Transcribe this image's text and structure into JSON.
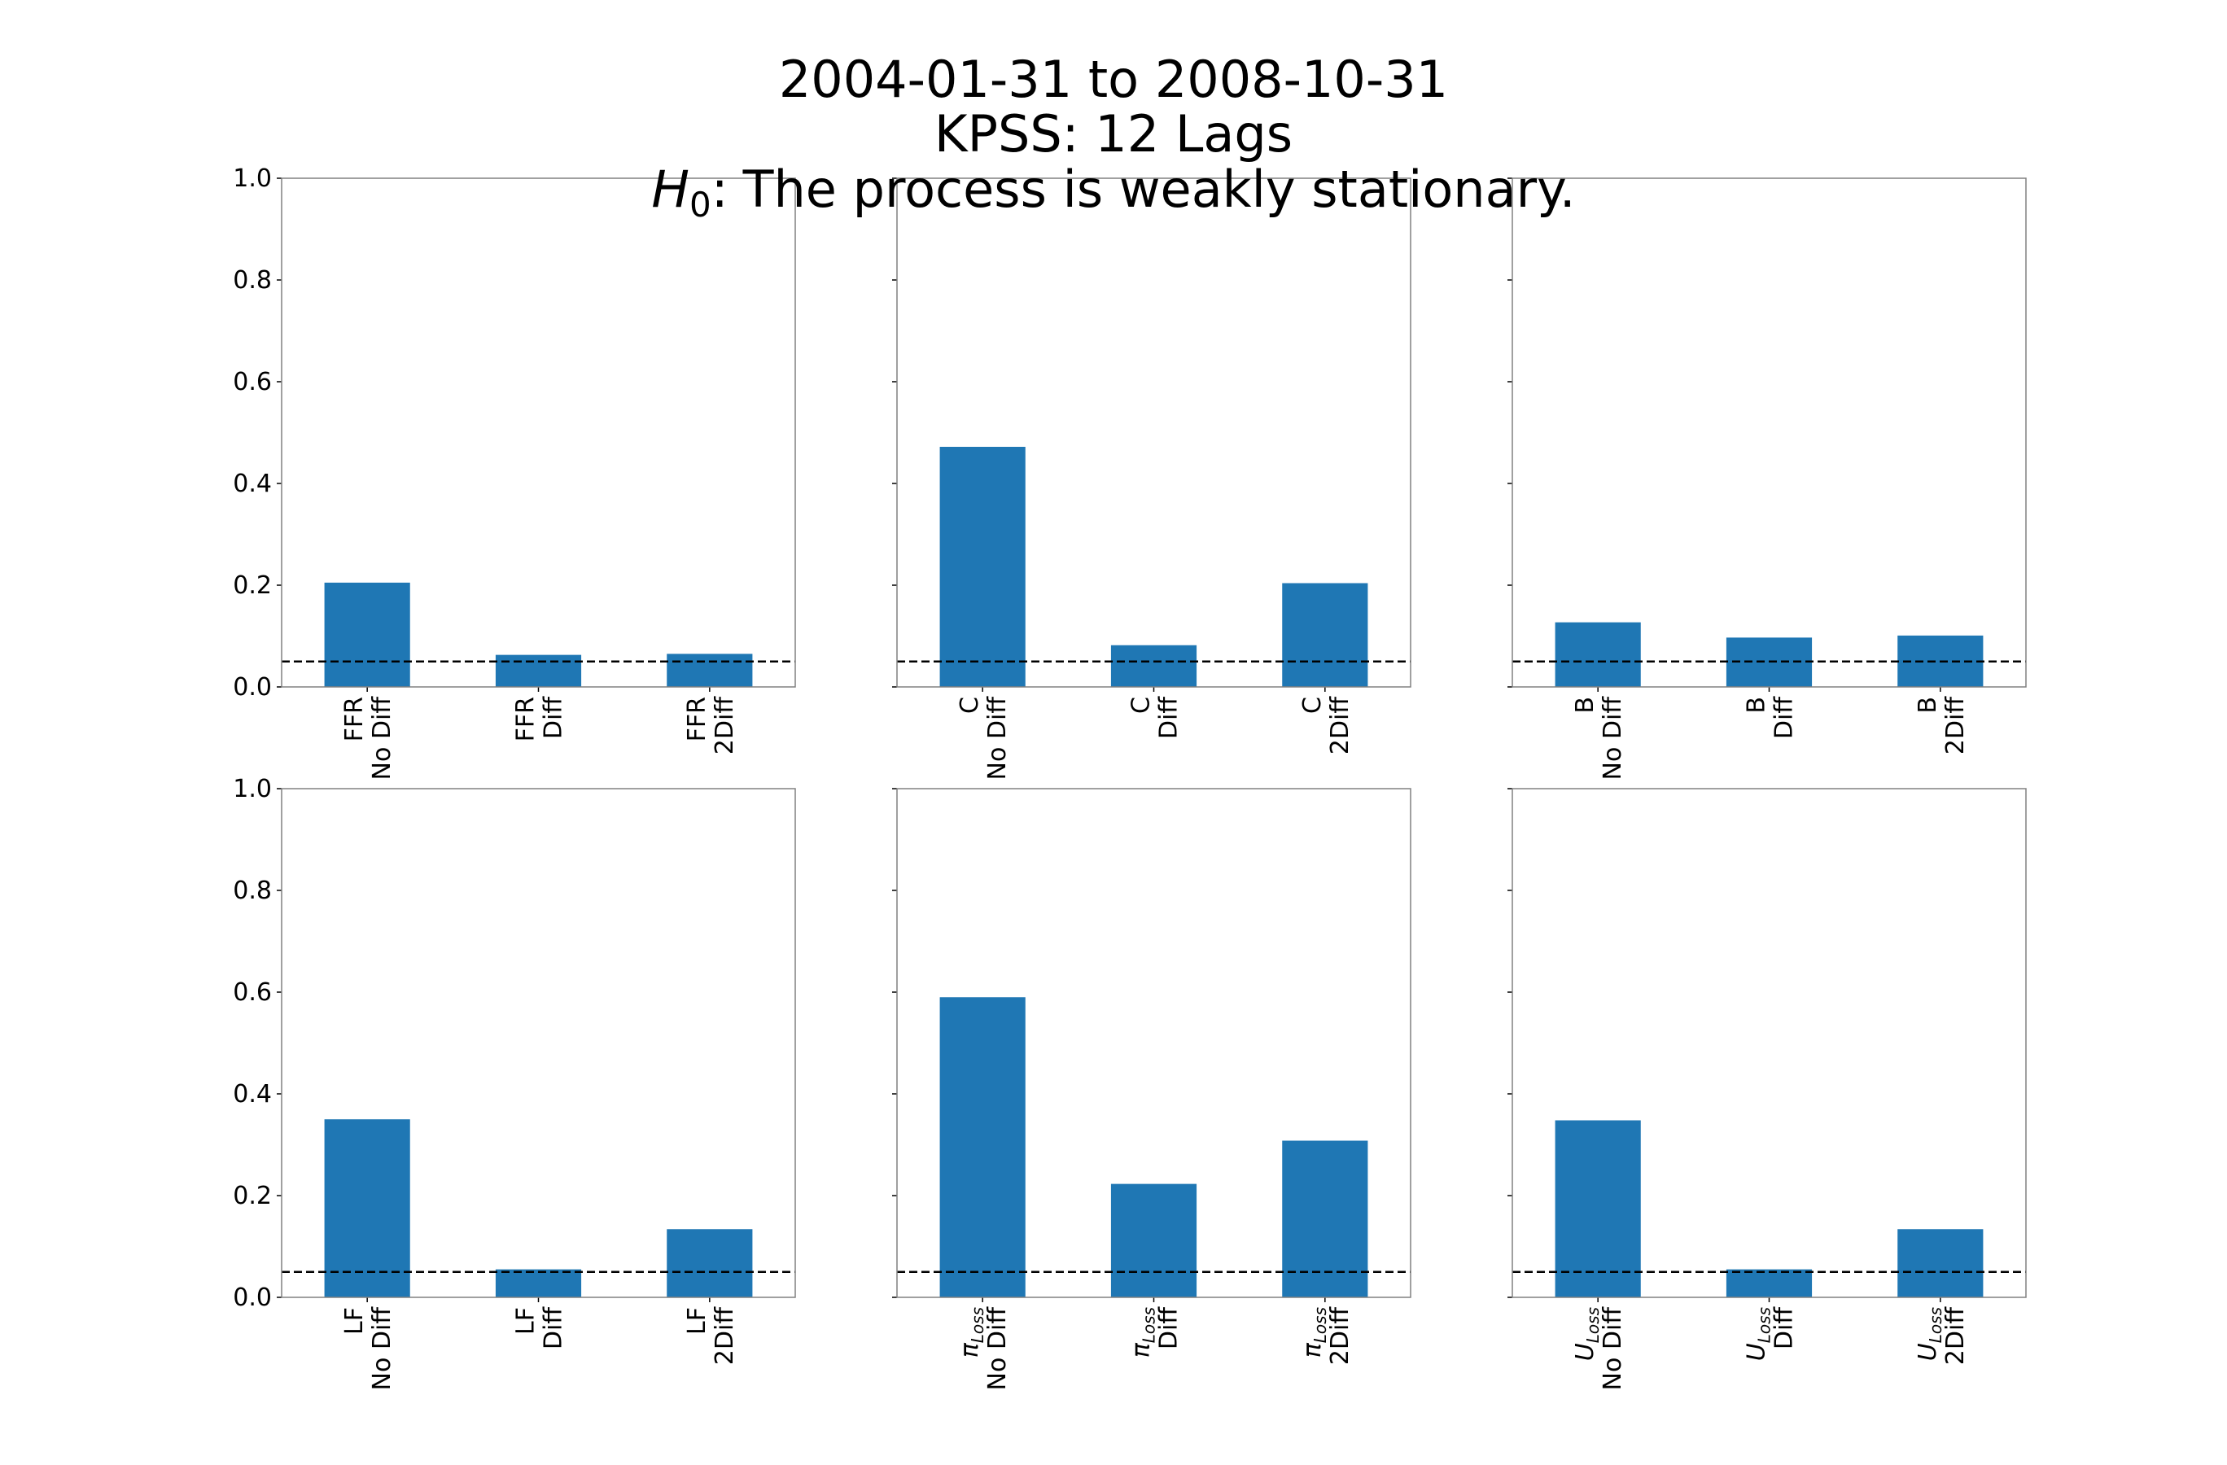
{
  "figure": {
    "title_lines": [
      "2004-01-31 to 2008-10-31",
      "KPSS: 12 Lags"
    ],
    "title_h0": {
      "symbol": "H",
      "subscript": "0",
      "separator": ":",
      "text": "The process is weakly stationary."
    }
  },
  "colors": {
    "bar": "#1f77b4",
    "threshold": "#000000",
    "axes": "#808080"
  },
  "chart_data": [
    {
      "type": "bar",
      "title": "",
      "xlabel": "",
      "ylabel": "",
      "ylim": [
        0,
        1
      ],
      "yticks": [
        "0.0",
        "0.2",
        "0.4",
        "0.6",
        "0.8",
        "1.0"
      ],
      "show_ytick_labels": true,
      "threshold": 0.05,
      "categories": [
        {
          "var": "FFR",
          "sub": "",
          "line2": "No Diff"
        },
        {
          "var": "FFR",
          "sub": "",
          "line2": "Diff"
        },
        {
          "var": "FFR",
          "sub": "",
          "line2": "2Diff"
        }
      ],
      "values": [
        0.205,
        0.063,
        0.065
      ]
    },
    {
      "type": "bar",
      "title": "",
      "xlabel": "",
      "ylabel": "",
      "ylim": [
        0,
        1
      ],
      "yticks": [
        "0.0",
        "0.2",
        "0.4",
        "0.6",
        "0.8",
        "1.0"
      ],
      "show_ytick_labels": false,
      "threshold": 0.05,
      "categories": [
        {
          "var": "C",
          "sub": "",
          "line2": "No Diff"
        },
        {
          "var": "C",
          "sub": "",
          "line2": "Diff"
        },
        {
          "var": "C",
          "sub": "",
          "line2": "2Diff"
        }
      ],
      "values": [
        0.472,
        0.082,
        0.204
      ]
    },
    {
      "type": "bar",
      "title": "",
      "xlabel": "",
      "ylabel": "",
      "ylim": [
        0,
        1
      ],
      "yticks": [
        "0.0",
        "0.2",
        "0.4",
        "0.6",
        "0.8",
        "1.0"
      ],
      "show_ytick_labels": false,
      "threshold": 0.05,
      "categories": [
        {
          "var": "B",
          "sub": "",
          "line2": "No Diff"
        },
        {
          "var": "B",
          "sub": "",
          "line2": "Diff"
        },
        {
          "var": "B",
          "sub": "",
          "line2": "2Diff"
        }
      ],
      "values": [
        0.127,
        0.097,
        0.101
      ]
    },
    {
      "type": "bar",
      "title": "",
      "xlabel": "",
      "ylabel": "",
      "ylim": [
        0,
        1
      ],
      "yticks": [
        "0.0",
        "0.2",
        "0.4",
        "0.6",
        "0.8",
        "1.0"
      ],
      "show_ytick_labels": true,
      "threshold": 0.05,
      "categories": [
        {
          "var": "LF",
          "sub": "",
          "line2": "No Diff"
        },
        {
          "var": "LF",
          "sub": "",
          "line2": "Diff"
        },
        {
          "var": "LF",
          "sub": "",
          "line2": "2Diff"
        }
      ],
      "values": [
        0.35,
        0.055,
        0.134
      ]
    },
    {
      "type": "bar",
      "title": "",
      "xlabel": "",
      "ylabel": "",
      "ylim": [
        0,
        1
      ],
      "yticks": [
        "0.0",
        "0.2",
        "0.4",
        "0.6",
        "0.8",
        "1.0"
      ],
      "show_ytick_labels": false,
      "threshold": 0.05,
      "categories": [
        {
          "var": "π",
          "sub": "Loss",
          "line2": "No Diff"
        },
        {
          "var": "π",
          "sub": "Loss",
          "line2": "Diff"
        },
        {
          "var": "π",
          "sub": "Loss",
          "line2": "2Diff"
        }
      ],
      "values": [
        0.59,
        0.223,
        0.308
      ]
    },
    {
      "type": "bar",
      "title": "",
      "xlabel": "",
      "ylabel": "",
      "ylim": [
        0,
        1
      ],
      "yticks": [
        "0.0",
        "0.2",
        "0.4",
        "0.6",
        "0.8",
        "1.0"
      ],
      "show_ytick_labels": false,
      "threshold": 0.05,
      "categories": [
        {
          "var": "U",
          "sub": "Loss",
          "line2": "No Diff"
        },
        {
          "var": "U",
          "sub": "Loss",
          "line2": "Diff"
        },
        {
          "var": "U",
          "sub": "Loss",
          "line2": "2Diff"
        }
      ],
      "values": [
        0.348,
        0.055,
        0.134
      ]
    }
  ]
}
